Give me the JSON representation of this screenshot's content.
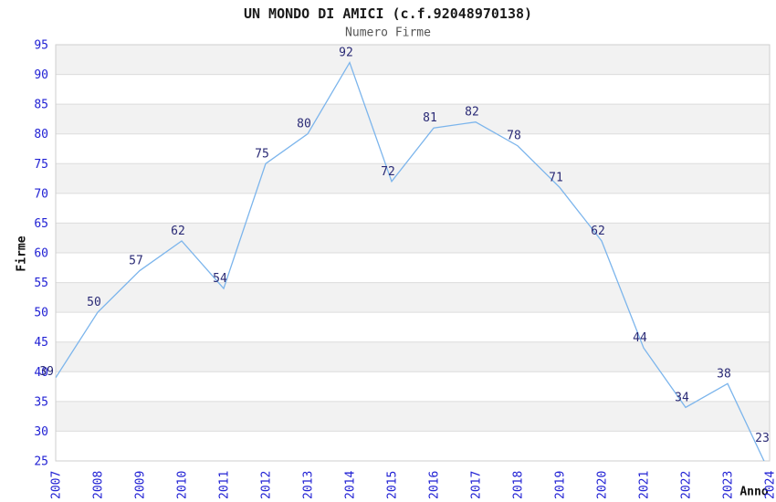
{
  "chart_data": {
    "type": "line",
    "title": "UN MONDO DI AMICI (c.f.92048970138)",
    "subtitle": "Numero Firme",
    "xlabel": "Anno",
    "ylabel": "Firme",
    "x": [
      "2007",
      "2008",
      "2009",
      "2010",
      "2011",
      "2012",
      "2013",
      "2014",
      "2015",
      "2016",
      "2017",
      "2018",
      "2019",
      "2020",
      "2021",
      "2022",
      "2023",
      "2024"
    ],
    "values": [
      39,
      50,
      57,
      62,
      54,
      75,
      80,
      92,
      72,
      81,
      82,
      78,
      71,
      62,
      44,
      34,
      38,
      23
    ],
    "ylim": [
      25,
      95
    ],
    "ytick_step": 5,
    "grid": "horizontal-bands-alternating",
    "legend": "none",
    "colors": {
      "line": "#7cb5ec",
      "tick_label": "#2121d4",
      "data_label": "#2a2a75",
      "band": "#f2f2f2",
      "grid_line": "#dcdcdc",
      "plot_border": "#cfcfcf",
      "title": "#1a1a1a",
      "subtitle": "#555555",
      "axis_title": "#111111"
    }
  }
}
